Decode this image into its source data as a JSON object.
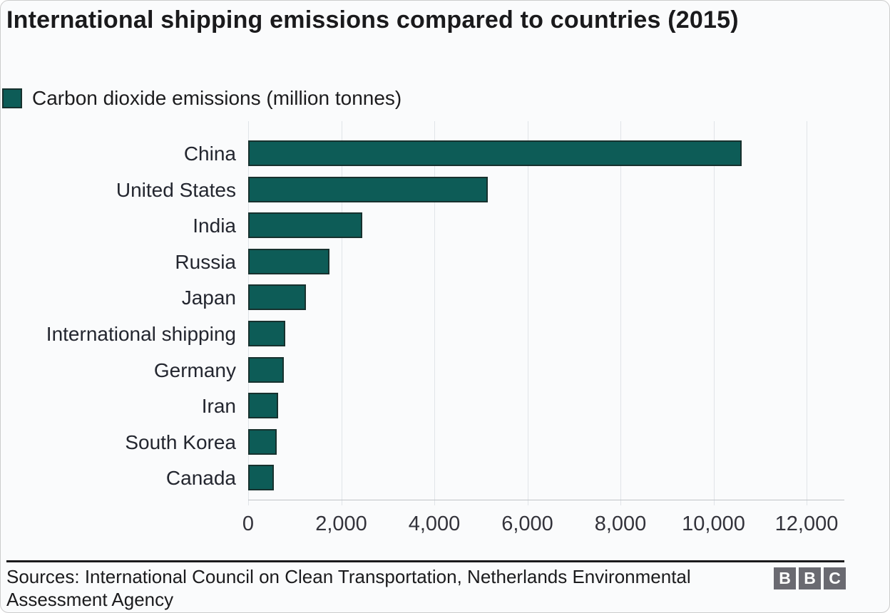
{
  "header": {
    "title": "International shipping emissions compared to countries (2015)"
  },
  "legend": {
    "label": "Carbon dioxide emissions (million tonnes)"
  },
  "chart_data": {
    "type": "bar",
    "orientation": "horizontal",
    "title": "International shipping emissions compared to countries (2015)",
    "legend_entries": [
      "Carbon dioxide emissions (million tonnes)"
    ],
    "legend_position": "top-left",
    "categories": [
      "China",
      "United States",
      "India",
      "Russia",
      "Japan",
      "International shipping",
      "Germany",
      "Iran",
      "South Korea",
      "Canada"
    ],
    "values": [
      10600,
      5150,
      2450,
      1740,
      1240,
      800,
      770,
      640,
      610,
      550
    ],
    "units": "million tonnes CO2",
    "xlabel": "",
    "ylabel": "",
    "xlim": [
      0,
      12000
    ],
    "x_ticks": [
      0,
      2000,
      4000,
      6000,
      8000,
      10000,
      12000
    ],
    "x_tick_labels": [
      "0",
      "2,000",
      "4,000",
      "6,000",
      "8,000",
      "10,000",
      "12,000"
    ],
    "grid": true,
    "colors": {
      "bar_fill": "#0d5c57",
      "bar_border": "#17312e",
      "gridline": "#e0e4e8",
      "axis_line": "#bfc3c6",
      "text": "#1c1c1e"
    }
  },
  "footer": {
    "sources": "Sources: International Council on Clean Transportation, Netherlands Environmental Assessment Agency",
    "logo": {
      "name": "BBC",
      "letters": [
        "B",
        "B",
        "C"
      ]
    }
  }
}
